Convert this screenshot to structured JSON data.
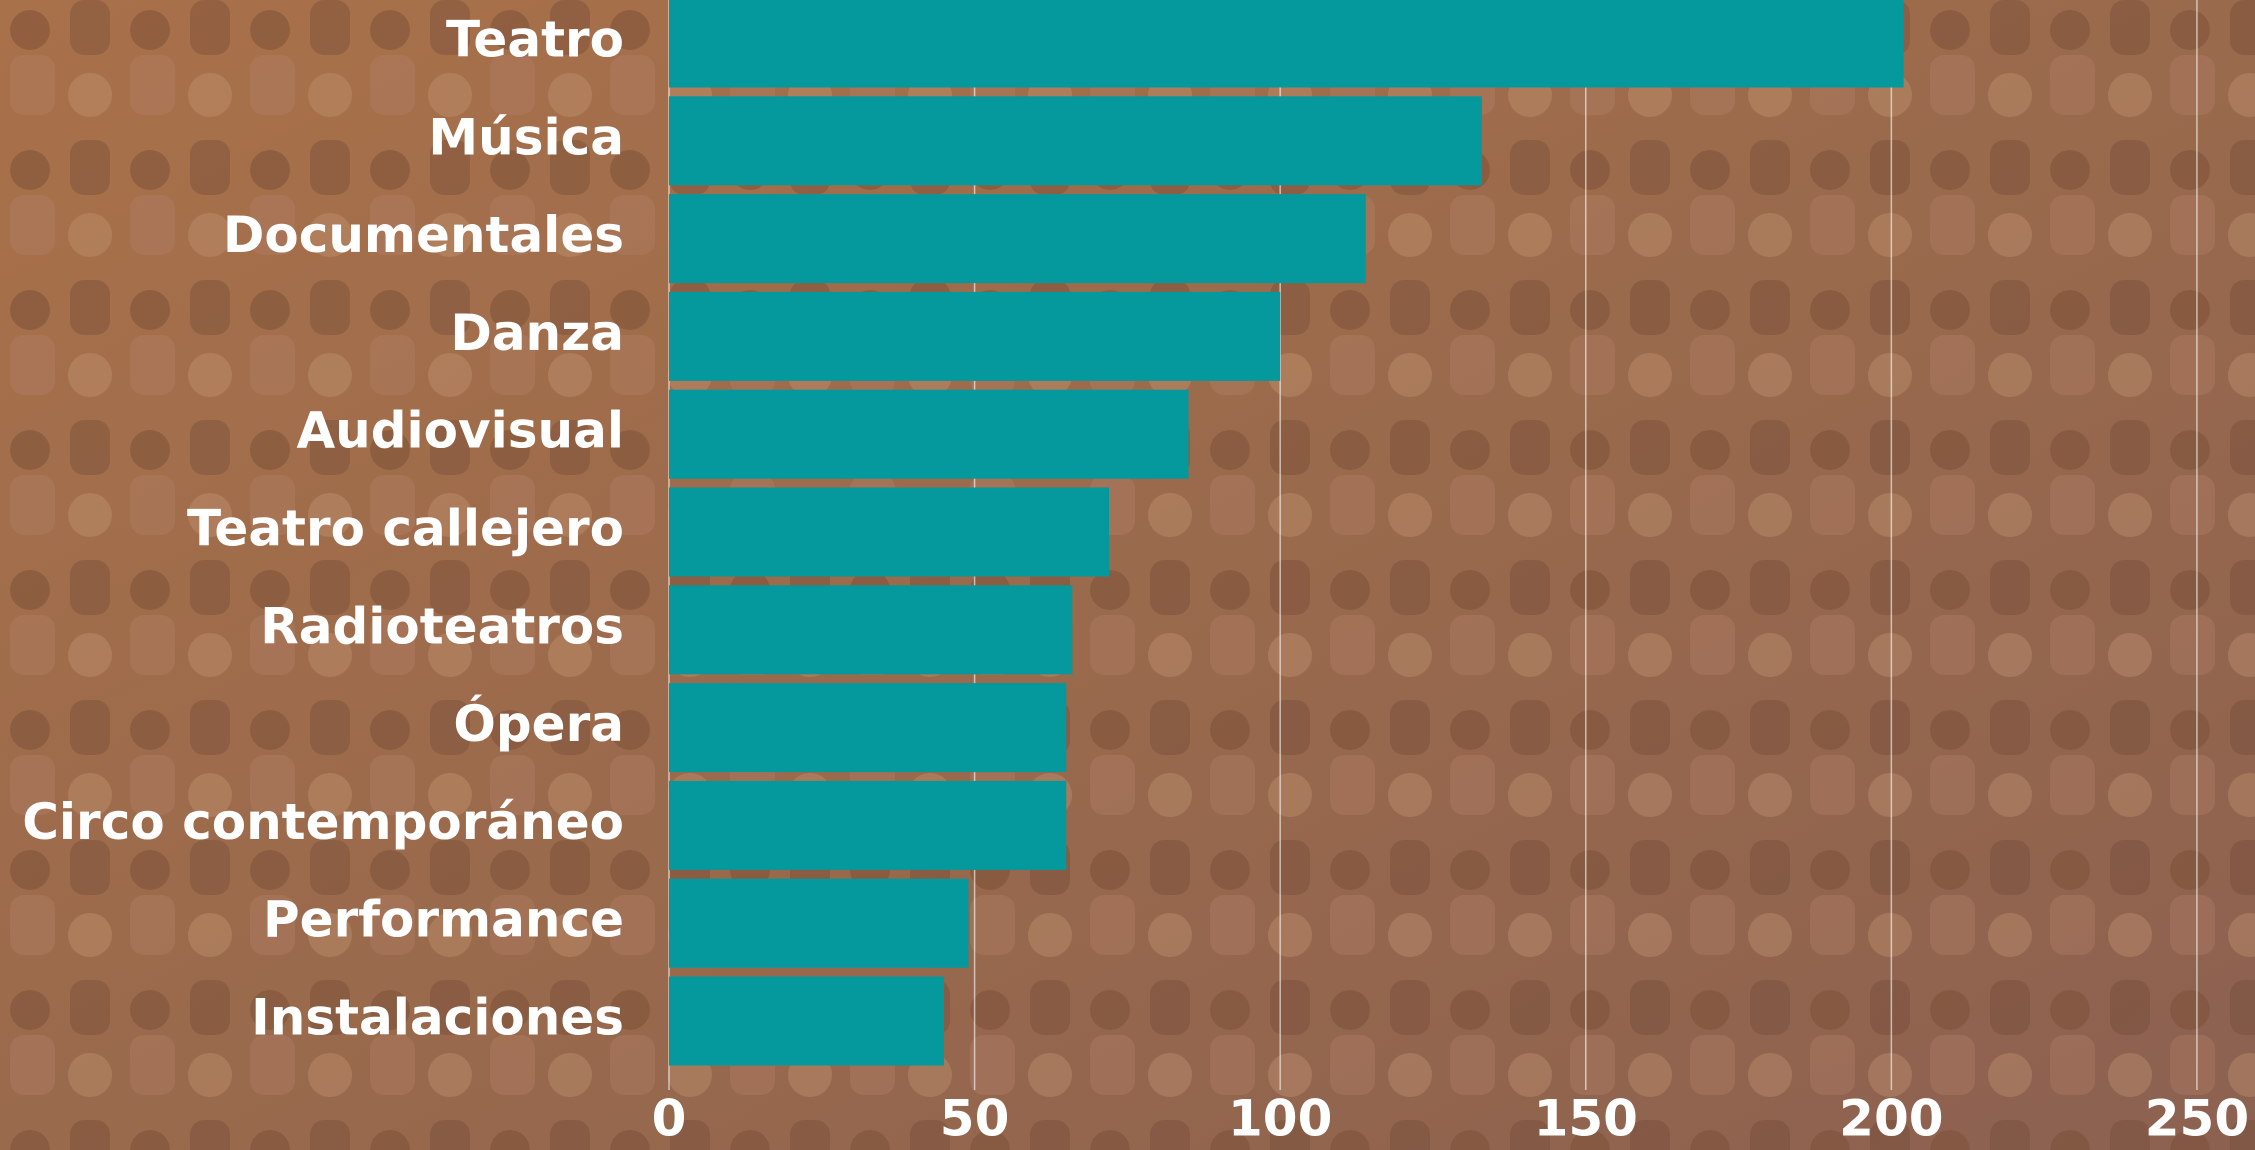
{
  "chart_data": {
    "type": "bar",
    "orientation": "horizontal",
    "categories": [
      "Teatro",
      "Música",
      "Documentales",
      "Danza",
      "Audiovisual",
      "Teatro callejero",
      "Radioteatros",
      "Ópera",
      "Circo contemporáneo",
      "Performance",
      "Instalaciones"
    ],
    "values": [
      202,
      133,
      114,
      100,
      85,
      72,
      66,
      65,
      65,
      49,
      45
    ],
    "color": "#05989d",
    "xlim": [
      0,
      259.5
    ],
    "xticks": [
      0,
      50,
      100,
      150,
      200,
      250
    ],
    "grid": true
  }
}
